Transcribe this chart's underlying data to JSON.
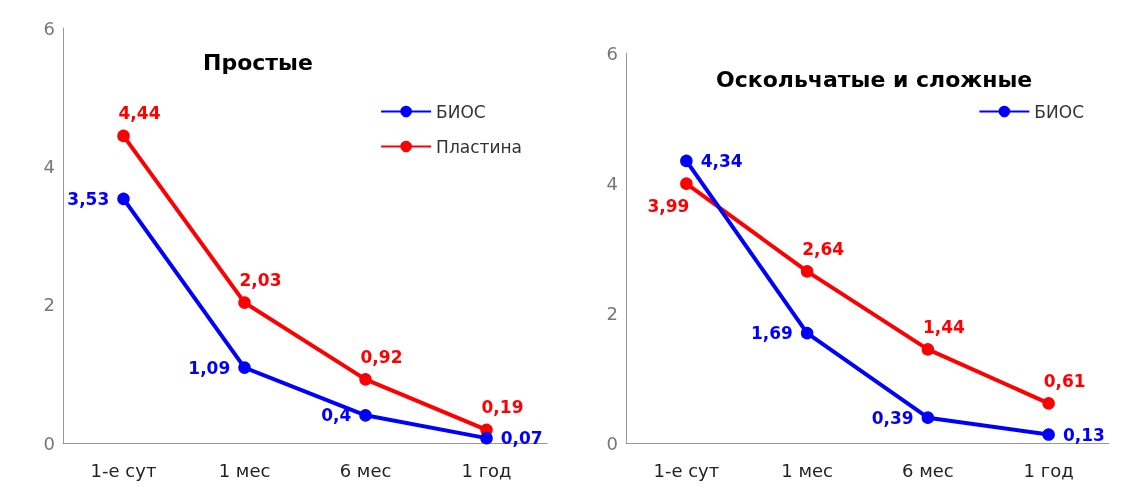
{
  "chart_data": [
    {
      "type": "line",
      "title": "Простые",
      "categories": [
        "1-е сут",
        "1 мес",
        "6 мес",
        "1 год"
      ],
      "ylim": [
        0,
        6
      ],
      "yticks": [
        0,
        2,
        4,
        6
      ],
      "grid": false,
      "legend": "top right",
      "marker": "circle",
      "line_style": "solid",
      "series": [
        {
          "name": "БИОС",
          "color": "#0000ff",
          "values": [
            3.53,
            1.09,
            0.4,
            0.07
          ],
          "value_labels": [
            "3,53",
            "1,09",
            "0,4",
            "0,07"
          ]
        },
        {
          "name": "Пластина",
          "color": "#ff0000",
          "values": [
            4.44,
            2.03,
            0.92,
            0.19
          ],
          "value_labels": [
            "4,44",
            "2,03",
            "0,92",
            "0,19"
          ]
        }
      ]
    },
    {
      "type": "line",
      "title": "Оскольчатые и сложные",
      "categories": [
        "1-е сут",
        "1 мес",
        "6 мес",
        "1 год"
      ],
      "ylim": [
        0,
        6
      ],
      "yticks": [
        0,
        2,
        4,
        6
      ],
      "grid": false,
      "legend": "top right",
      "marker": "circle",
      "line_style": "solid",
      "series": [
        {
          "name": "БИОС",
          "color": "#0000ff",
          "values": [
            4.34,
            1.69,
            0.39,
            0.13
          ],
          "value_labels": [
            "4,34",
            "1,69",
            "0,39",
            "0,13"
          ]
        },
        {
          "color": "#ff0000",
          "values": [
            3.99,
            2.64,
            1.44,
            0.61
          ],
          "value_labels": [
            "3,99",
            "2,64",
            "1,44",
            "0,61"
          ]
        }
      ]
    }
  ]
}
